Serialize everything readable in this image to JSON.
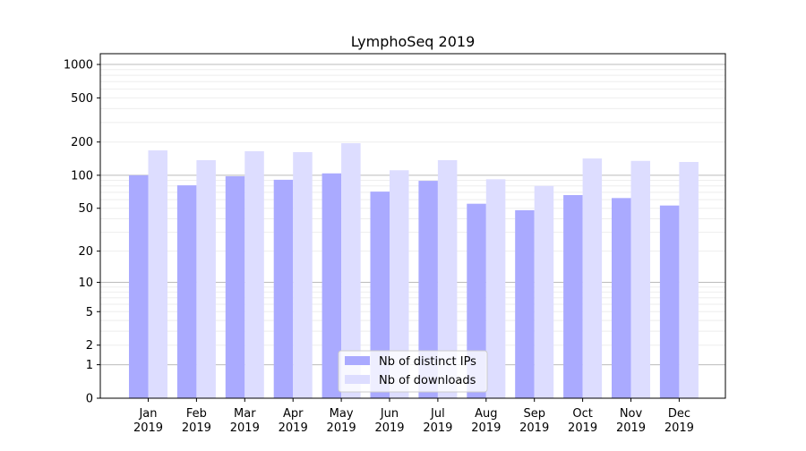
{
  "chart_data": {
    "type": "bar",
    "title": "LymphoSeq 2019",
    "xlabel": "",
    "ylabel": "",
    "yscale": "log(1+y)",
    "ylim": [
      0,
      1250
    ],
    "yticks": [
      0,
      1,
      2,
      5,
      10,
      20,
      50,
      100,
      200,
      500,
      1000
    ],
    "grid": true,
    "legend_position": "lower center",
    "categories": [
      "Jan\n2019",
      "Feb\n2019",
      "Mar\n2019",
      "Apr\n2019",
      "May\n2019",
      "Jun\n2019",
      "Jul\n2019",
      "Aug\n2019",
      "Sep\n2019",
      "Oct\n2019",
      "Nov\n2019",
      "Dec\n2019"
    ],
    "series": [
      {
        "name": "Nb of distinct IPs",
        "color": "#aaaaff",
        "values": [
          100,
          81,
          98,
          91,
          104,
          71,
          89,
          55,
          48,
          66,
          62,
          53
        ]
      },
      {
        "name": "Nb of downloads",
        "color": "#ddddff",
        "values": [
          168,
          137,
          165,
          162,
          195,
          111,
          137,
          92,
          80,
          142,
          135,
          132
        ]
      }
    ]
  }
}
